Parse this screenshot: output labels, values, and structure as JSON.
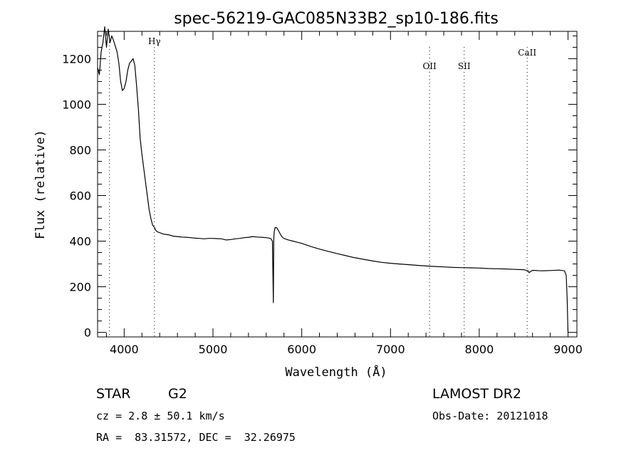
{
  "chart_data": {
    "type": "line",
    "title": "spec-56219-GAC085N33B2_sp10-186.fits",
    "xlabel": "Wavelength (Å)",
    "ylabel": "Flux (relative)",
    "xlim": [
      3700,
      9100
    ],
    "ylim": [
      -20,
      1320
    ],
    "x_ticks": [
      4000,
      5000,
      6000,
      7000,
      8000,
      9000
    ],
    "y_ticks": [
      0,
      200,
      400,
      600,
      800,
      1000,
      1200
    ],
    "grid": false,
    "series": [
      {
        "x": [
          3700,
          3720,
          3740,
          3760,
          3780,
          3800,
          3820,
          3840,
          3860,
          3880,
          3900,
          3920,
          3940,
          3960,
          3980,
          4000,
          4020,
          4040,
          4060,
          4080,
          4100,
          4120,
          4140,
          4160,
          4180,
          4200,
          4220,
          4240,
          4260,
          4280,
          4300,
          4320,
          4340,
          4360,
          4380,
          4400,
          4450,
          4500,
          4550,
          4600,
          4650,
          4700,
          4750,
          4800,
          4850,
          4900,
          4950,
          5000,
          5050,
          5100,
          5150,
          5200,
          5250,
          5300,
          5350,
          5400,
          5450,
          5500,
          5550,
          5600,
          5650,
          5670,
          5680,
          5685,
          5690,
          5700,
          5720,
          5740,
          5760,
          5780,
          5800,
          5850,
          5900,
          5950,
          6000,
          6100,
          6200,
          6300,
          6400,
          6500,
          6600,
          6700,
          6800,
          6900,
          7000,
          7100,
          7200,
          7300,
          7400,
          7500,
          7600,
          7700,
          7800,
          7900,
          8000,
          8100,
          8200,
          8300,
          8400,
          8500,
          8550,
          8560,
          8600,
          8700,
          8800,
          8900,
          8960,
          8980,
          8990,
          9000
        ],
        "y": [
          1160,
          1130,
          1230,
          1270,
          1340,
          1250,
          1330,
          1270,
          1300,
          1280,
          1255,
          1230,
          1180,
          1100,
          1060,
          1070,
          1100,
          1150,
          1180,
          1190,
          1200,
          1170,
          1080,
          980,
          850,
          780,
          720,
          660,
          600,
          540,
          500,
          470,
          460,
          445,
          440,
          437,
          430,
          428,
          422,
          420,
          418,
          417,
          415,
          413,
          412,
          410,
          412,
          412,
          411,
          410,
          405,
          407,
          410,
          412,
          415,
          417,
          420,
          418,
          417,
          415,
          412,
          400,
          130,
          410,
          440,
          460,
          458,
          445,
          430,
          418,
          412,
          405,
          400,
          395,
          390,
          377,
          365,
          355,
          345,
          336,
          327,
          320,
          313,
          307,
          303,
          300,
          297,
          294,
          291,
          289,
          287,
          285,
          284,
          283,
          282,
          280,
          279,
          278,
          276,
          275,
          270,
          262,
          272,
          270,
          271,
          273,
          270,
          250,
          150,
          0
        ]
      }
    ],
    "line_labels": [
      {
        "text": "Hγ",
        "x": 4340
      },
      {
        "text": "OII",
        "x": 7440
      },
      {
        "text": "SII",
        "x": 7830
      },
      {
        "text": "CaII",
        "x": 8540
      }
    ],
    "left_marker": {
      "x": 3834
    }
  },
  "info": {
    "object_class": "STAR",
    "subclass": "G2",
    "survey": "LAMOST DR2",
    "cz_text": "cz = 2.8 ± 50.1 km/s",
    "obs_date_text": "Obs-Date: 20121018",
    "coords_text": "RA =  83.31572, DEC =  32.26975"
  }
}
